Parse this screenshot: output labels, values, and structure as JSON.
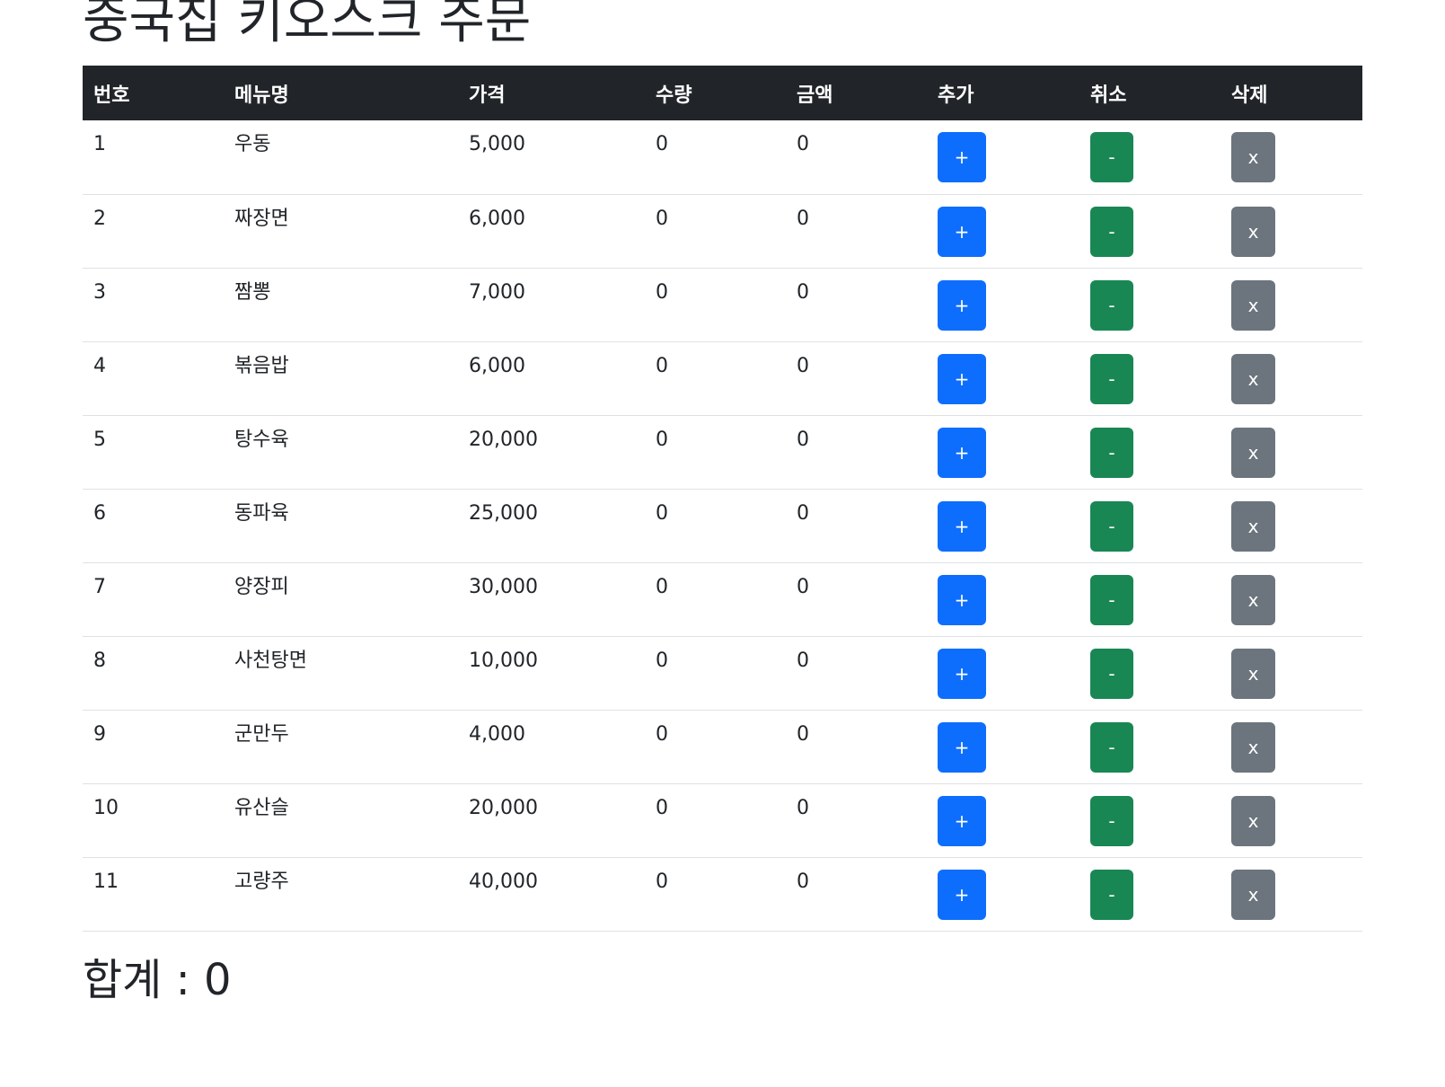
{
  "page_title": "중국집 키오스크 주문",
  "table": {
    "headers": {
      "no": "번호",
      "menu": "메뉴명",
      "price": "가격",
      "qty": "수량",
      "amount": "금액",
      "add": "추가",
      "cancel": "취소",
      "delete": "삭제"
    },
    "rows": [
      {
        "no": "1",
        "menu": "우동",
        "price": "5,000",
        "qty": "0",
        "amount": "0"
      },
      {
        "no": "2",
        "menu": "짜장면",
        "price": "6,000",
        "qty": "0",
        "amount": "0"
      },
      {
        "no": "3",
        "menu": "짬뽕",
        "price": "7,000",
        "qty": "0",
        "amount": "0"
      },
      {
        "no": "4",
        "menu": "볶음밥",
        "price": "6,000",
        "qty": "0",
        "amount": "0"
      },
      {
        "no": "5",
        "menu": "탕수육",
        "price": "20,000",
        "qty": "0",
        "amount": "0"
      },
      {
        "no": "6",
        "menu": "동파육",
        "price": "25,000",
        "qty": "0",
        "amount": "0"
      },
      {
        "no": "7",
        "menu": "양장피",
        "price": "30,000",
        "qty": "0",
        "amount": "0"
      },
      {
        "no": "8",
        "menu": "사천탕면",
        "price": "10,000",
        "qty": "0",
        "amount": "0"
      },
      {
        "no": "9",
        "menu": "군만두",
        "price": "4,000",
        "qty": "0",
        "amount": "0"
      },
      {
        "no": "10",
        "menu": "유산슬",
        "price": "20,000",
        "qty": "0",
        "amount": "0"
      },
      {
        "no": "11",
        "menu": "고량주",
        "price": "40,000",
        "qty": "0",
        "amount": "0"
      }
    ],
    "button_labels": {
      "add": "+",
      "cancel": "-",
      "delete": "x"
    }
  },
  "total_text": "합계 : 0",
  "colors": {
    "header_bg": "#212529",
    "add_button": "#0d6efd",
    "cancel_button": "#198754",
    "delete_button": "#6c757d"
  }
}
